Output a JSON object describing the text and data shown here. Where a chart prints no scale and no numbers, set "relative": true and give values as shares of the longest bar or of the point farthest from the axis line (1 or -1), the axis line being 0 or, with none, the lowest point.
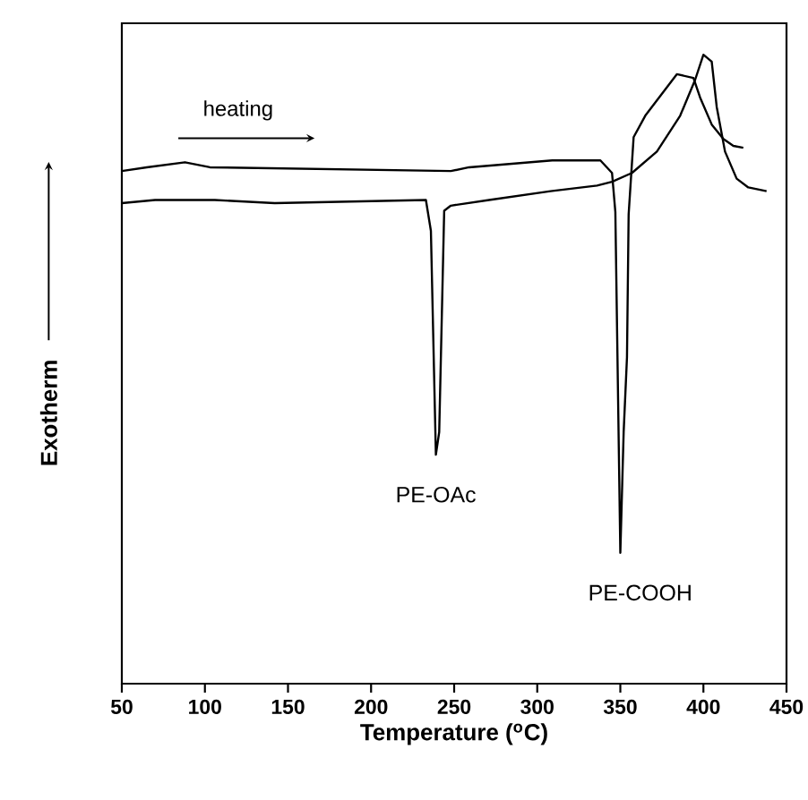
{
  "chart_data": {
    "type": "line",
    "relative": true,
    "xlabel": "Temperature ($^{o}$C)",
    "ylabel": "Exotherm",
    "annotations": [
      "heating"
    ],
    "xlim": [
      50,
      450
    ],
    "xticks": [
      50,
      100,
      150,
      200,
      250,
      300,
      350,
      400,
      450
    ],
    "tick_labels": "x",
    "line_style": "solid",
    "series": [
      {
        "name": "PE-OAc",
        "color": "#000000",
        "x": [
          50,
          70,
          106,
          142,
          233,
          236,
          239,
          241,
          244,
          248,
          271,
          308,
          336,
          345,
          357,
          372,
          386,
          395,
          400,
          405,
          408,
          413,
          420,
          427,
          438
        ],
        "values": [
          0.764,
          0.769,
          0.769,
          0.764,
          0.769,
          0.72,
          0.364,
          0.4,
          0.752,
          0.76,
          0.769,
          0.783,
          0.792,
          0.798,
          0.812,
          0.846,
          0.903,
          0.96,
          1.0,
          0.989,
          0.917,
          0.846,
          0.803,
          0.789,
          0.783
        ]
      },
      {
        "name": "PE-COOH",
        "color": "#000000",
        "x": [
          50,
          65,
          88,
          103,
          248,
          259,
          309,
          338,
          345,
          347,
          350,
          352,
          354,
          355,
          358,
          365,
          384,
          394,
          398,
          405,
          412,
          418,
          424
        ],
        "values": [
          0.815,
          0.821,
          0.829,
          0.821,
          0.815,
          0.821,
          0.832,
          0.832,
          0.812,
          0.75,
          0.208,
          0.4,
          0.519,
          0.746,
          0.869,
          0.903,
          0.969,
          0.963,
          0.932,
          0.889,
          0.866,
          0.855,
          0.852
        ]
      }
    ]
  }
}
